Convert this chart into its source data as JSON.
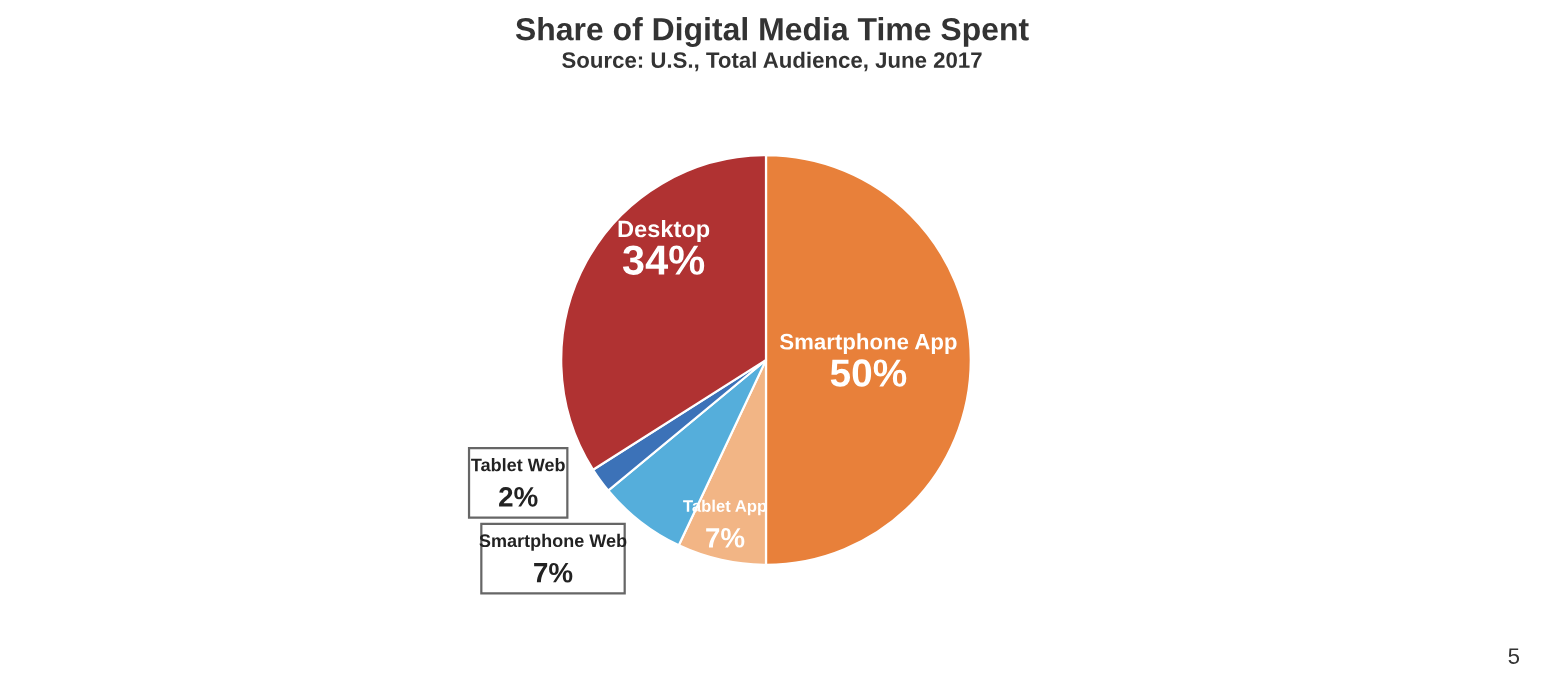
{
  "chart_data": {
    "type": "pie",
    "title": "Share of Digital Media Time Spent",
    "subtitle": "Source: U.S., Total Audience, June 2017",
    "categories": [
      "Smartphone App",
      "Tablet App",
      "Smartphone Web",
      "Tablet Web",
      "Desktop"
    ],
    "values": [
      50,
      7,
      7,
      2,
      34
    ],
    "colors": [
      "#e8803a",
      "#f2b585",
      "#55aedb",
      "#3c72b8",
      "#b03232"
    ],
    "value_labels": [
      "50%",
      "7%",
      "7%",
      "2%",
      "34%"
    ],
    "annotations": [
      "5"
    ],
    "legend": false
  }
}
